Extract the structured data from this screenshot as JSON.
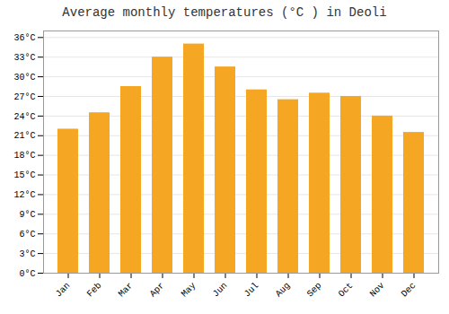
{
  "chart_data": {
    "type": "bar",
    "title": "Average monthly temperatures (°C ) in Deoli",
    "categories": [
      "Jan",
      "Feb",
      "Mar",
      "Apr",
      "May",
      "Jun",
      "Jul",
      "Aug",
      "Sep",
      "Oct",
      "Nov",
      "Dec"
    ],
    "values": [
      22,
      24.5,
      28.5,
      33,
      35,
      31.5,
      28,
      26.5,
      27.5,
      27,
      24,
      21.5
    ],
    "color": "#F5A623",
    "ylim": [
      0,
      37
    ],
    "yticks": [
      {
        "value": 0,
        "label": "0°C"
      },
      {
        "value": 3,
        "label": "3°C"
      },
      {
        "value": 6,
        "label": "6°C"
      },
      {
        "value": 9,
        "label": "9°C"
      },
      {
        "value": 12,
        "label": "12°C"
      },
      {
        "value": 15,
        "label": "15°C"
      },
      {
        "value": 18,
        "label": "18°C"
      },
      {
        "value": 21,
        "label": "21°C"
      },
      {
        "value": 24,
        "label": "24°C"
      },
      {
        "value": 27,
        "label": "27°C"
      },
      {
        "value": 30,
        "label": "30°C"
      },
      {
        "value": 33,
        "label": "33°C"
      },
      {
        "value": 36,
        "label": "36°C"
      }
    ],
    "grid": true
  }
}
